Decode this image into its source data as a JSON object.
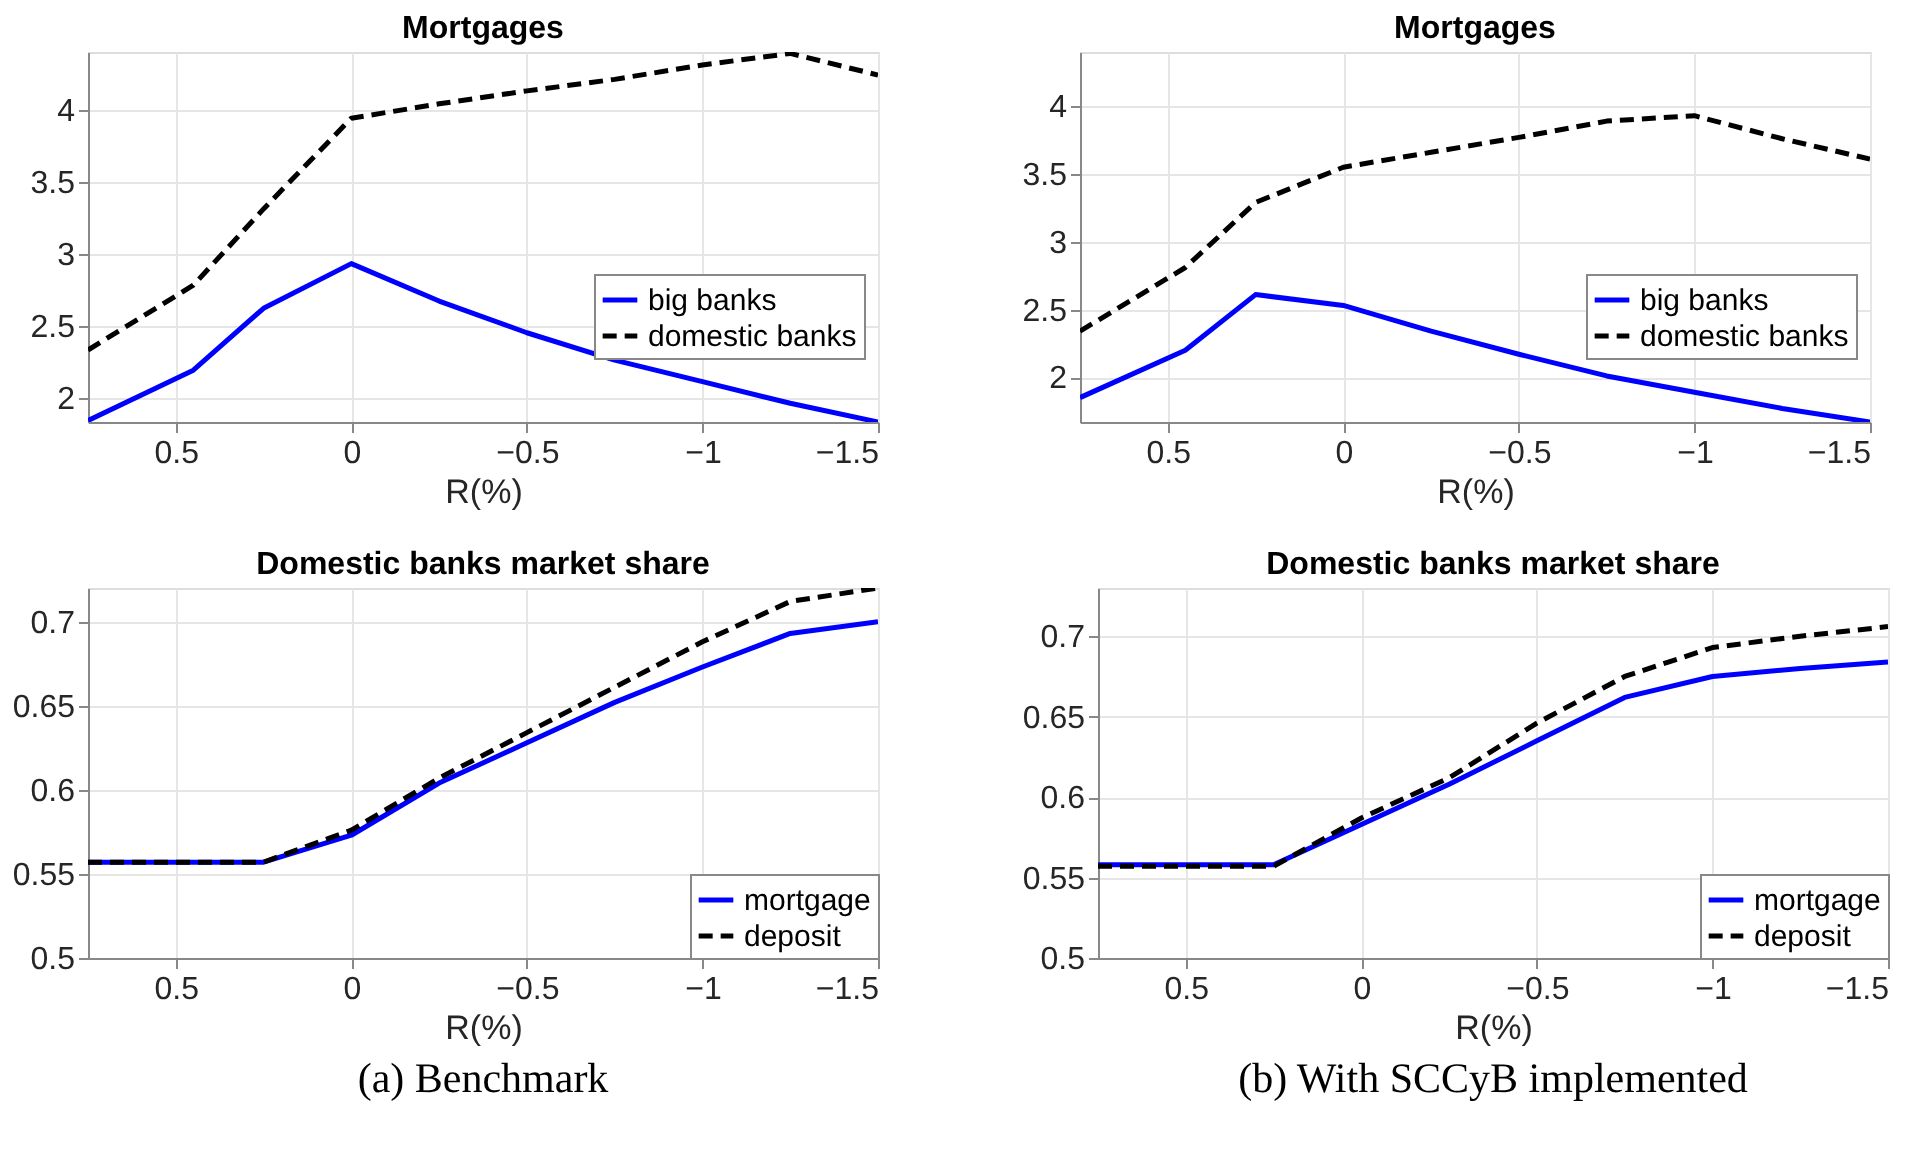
{
  "chart_data": [
    {
      "type": "line",
      "title": "Mortgages",
      "xlabel": "R(%)",
      "x": [
        0.75,
        0.45,
        0.25,
        0,
        -0.25,
        -0.5,
        -0.75,
        -1,
        -1.25,
        -1.5
      ],
      "xlim": [
        0.75,
        -1.5
      ],
      "xticks": [
        0.5,
        0,
        -0.5,
        -1,
        -1.5
      ],
      "ylim": [
        1.83,
        4.4
      ],
      "yticks": [
        2,
        2.5,
        3,
        3.5,
        4
      ],
      "grid": true,
      "legend": "right",
      "series": [
        {
          "name": "big banks",
          "color": "#0000ff",
          "line_style": "solid",
          "values": [
            1.84,
            2.19,
            2.62,
            2.93,
            2.67,
            2.45,
            2.26,
            2.11,
            1.96,
            1.83
          ]
        },
        {
          "name": "domestic banks",
          "color": "#000000",
          "line_style": "dashed",
          "values": [
            2.33,
            2.78,
            3.31,
            3.94,
            4.04,
            4.13,
            4.21,
            4.31,
            4.39,
            4.24
          ]
        }
      ]
    },
    {
      "type": "line",
      "title": "Mortgages",
      "xlabel": "R(%)",
      "x": [
        0.75,
        0.45,
        0.25,
        0,
        -0.25,
        -0.5,
        -0.75,
        -1,
        -1.25,
        -1.5
      ],
      "xlim": [
        0.75,
        -1.5
      ],
      "xticks": [
        0.5,
        0,
        -0.5,
        -1,
        -1.5
      ],
      "ylim": [
        1.67,
        4.4
      ],
      "yticks": [
        2,
        2.5,
        3,
        3.5,
        4
      ],
      "grid": true,
      "legend": "right",
      "series": [
        {
          "name": "big banks",
          "color": "#0000ff",
          "line_style": "solid",
          "values": [
            1.85,
            2.2,
            2.61,
            2.53,
            2.34,
            2.17,
            2.01,
            1.89,
            1.77,
            1.67
          ]
        },
        {
          "name": "domestic banks",
          "color": "#000000",
          "line_style": "dashed",
          "values": [
            2.34,
            2.81,
            3.29,
            3.55,
            3.66,
            3.77,
            3.89,
            3.93,
            3.76,
            3.61
          ]
        }
      ]
    },
    {
      "type": "line",
      "title": "Domestic banks market share",
      "xlabel": "R(%)",
      "x": [
        0.75,
        0.45,
        0.25,
        0,
        -0.25,
        -0.5,
        -0.75,
        -1,
        -1.25,
        -1.5
      ],
      "xlim": [
        0.75,
        -1.5
      ],
      "xticks": [
        0.5,
        0,
        -0.5,
        -1,
        -1.5
      ],
      "ylim": [
        0.5,
        0.72
      ],
      "yticks": [
        0.5,
        0.55,
        0.6,
        0.65,
        0.7
      ],
      "grid": true,
      "legend": "bottom right",
      "annotations": [
        "(a) Benchmark"
      ],
      "series": [
        {
          "name": "mortgage",
          "color": "#0000ff",
          "line_style": "solid",
          "values": [
            0.557,
            0.557,
            0.557,
            0.573,
            0.604,
            0.628,
            0.652,
            0.673,
            0.693,
            0.7
          ]
        },
        {
          "name": "deposit",
          "color": "#000000",
          "line_style": "dashed",
          "values": [
            0.557,
            0.557,
            0.557,
            0.576,
            0.607,
            0.634,
            0.661,
            0.688,
            0.712,
            0.72
          ]
        }
      ]
    },
    {
      "type": "line",
      "title": "Domestic banks market share",
      "xlabel": "R(%)",
      "x": [
        0.75,
        0.45,
        0.25,
        0,
        -0.25,
        -0.5,
        -0.75,
        -1,
        -1.25,
        -1.5
      ],
      "xlim": [
        0.75,
        -1.5
      ],
      "xticks": [
        0.5,
        0,
        -0.5,
        -1,
        -1.5
      ],
      "ylim": [
        0.5,
        0.73
      ],
      "yticks": [
        0.5,
        0.55,
        0.6,
        0.65,
        0.7
      ],
      "grid": true,
      "legend": "bottom right",
      "annotations": [
        "(b) With SCCyB implemented"
      ],
      "series": [
        {
          "name": "mortgage",
          "color": "#0000ff",
          "line_style": "solid",
          "values": [
            0.558,
            0.558,
            0.558,
            0.583,
            0.608,
            0.635,
            0.662,
            0.675,
            0.68,
            0.684
          ]
        },
        {
          "name": "deposit",
          "color": "#000000",
          "line_style": "dashed",
          "values": [
            0.557,
            0.557,
            0.557,
            0.587,
            0.612,
            0.646,
            0.675,
            0.693,
            0.7,
            0.706
          ]
        }
      ]
    }
  ]
}
